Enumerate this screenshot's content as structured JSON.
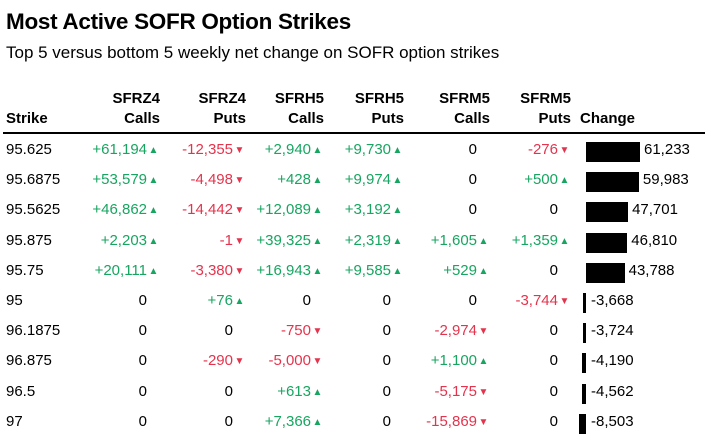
{
  "title": "Most Active SOFR Option Strikes",
  "subtitle": "Top 5 versus bottom 5 weekly net change on SOFR option strikes",
  "header": {
    "strike": "Strike",
    "columns": [
      {
        "line1": "SFRZ4",
        "line2": "Calls"
      },
      {
        "line1": "SFRZ4",
        "line2": "Puts"
      },
      {
        "line1": "SFRH5",
        "line2": "Calls"
      },
      {
        "line1": "SFRH5",
        "line2": "Puts"
      },
      {
        "line1": "SFRM5",
        "line2": "Calls"
      },
      {
        "line1": "SFRM5",
        "line2": "Puts"
      }
    ],
    "change": "Change"
  },
  "colors": {
    "positive": "#18a561",
    "negative": "#e4344d",
    "bar": "#000000"
  },
  "icons": {
    "up": "triangle-up-icon",
    "down": "triangle-down-icon"
  },
  "chart_data": {
    "type": "table",
    "columns": [
      "Strike",
      "SFRZ4 Calls",
      "SFRZ4 Puts",
      "SFRH5 Calls",
      "SFRH5 Puts",
      "SFRM5 Calls",
      "SFRM5 Puts",
      "Change"
    ],
    "rows": [
      {
        "strike": "95.625",
        "cells": [
          "+61,194",
          "-12,355",
          "+2,940",
          "+9,730",
          "0",
          "-276"
        ],
        "change": 61233,
        "change_label": "61,233"
      },
      {
        "strike": "95.6875",
        "cells": [
          "+53,579",
          "-4,498",
          "+428",
          "+9,974",
          "0",
          "+500"
        ],
        "change": 59983,
        "change_label": "59,983"
      },
      {
        "strike": "95.5625",
        "cells": [
          "+46,862",
          "-14,442",
          "+12,089",
          "+3,192",
          "0",
          "0"
        ],
        "change": 47701,
        "change_label": "47,701"
      },
      {
        "strike": "95.875",
        "cells": [
          "+2,203",
          "-1",
          "+39,325",
          "+2,319",
          "+1,605",
          "+1,359"
        ],
        "change": 46810,
        "change_label": "46,810"
      },
      {
        "strike": "95.75",
        "cells": [
          "+20,111",
          "-3,380",
          "+16,943",
          "+9,585",
          "+529",
          "0"
        ],
        "change": 43788,
        "change_label": "43,788"
      },
      {
        "strike": "95",
        "cells": [
          "0",
          "+76",
          "0",
          "0",
          "0",
          "-3,744"
        ],
        "change": -3668,
        "change_label": "-3,668"
      },
      {
        "strike": "96.1875",
        "cells": [
          "0",
          "0",
          "-750",
          "0",
          "-2,974",
          "0"
        ],
        "change": -3724,
        "change_label": "-3,724"
      },
      {
        "strike": "96.875",
        "cells": [
          "0",
          "-290",
          "-5,000",
          "0",
          "+1,100",
          "0"
        ],
        "change": -4190,
        "change_label": "-4,190"
      },
      {
        "strike": "96.5",
        "cells": [
          "0",
          "0",
          "+613",
          "0",
          "-5,175",
          "0"
        ],
        "change": -4562,
        "change_label": "-4,562"
      },
      {
        "strike": "97",
        "cells": [
          "0",
          "0",
          "+7,366",
          "0",
          "-15,869",
          "0"
        ],
        "change": -8503,
        "change_label": "-8,503"
      }
    ]
  }
}
